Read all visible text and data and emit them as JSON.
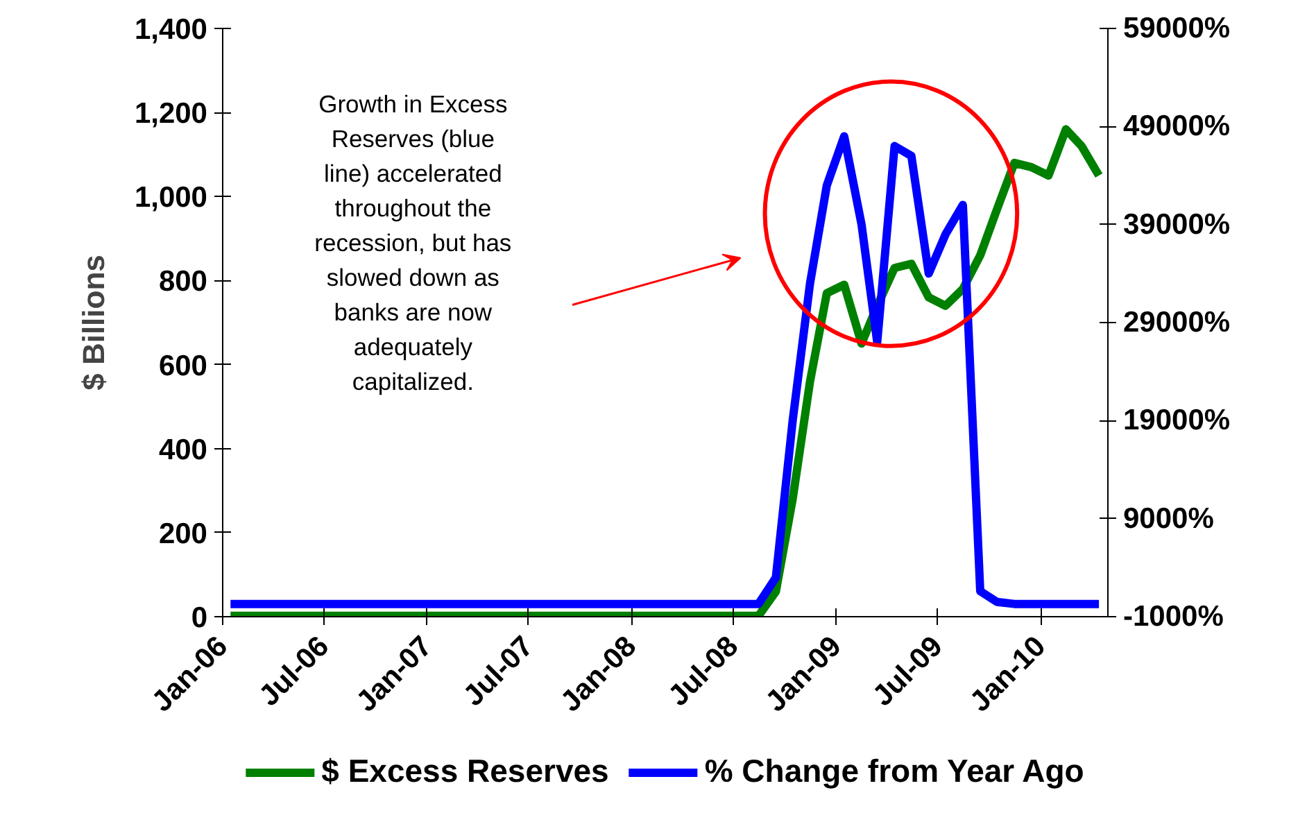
{
  "chart_data": {
    "type": "line",
    "ylabel": "$ Billions",
    "annotations": [
      "Growth in Excess Reserves (blue line) accelerated throughout the recession, but has slowed down as banks are now adequately capitalized."
    ],
    "x": [
      "2006-01-15",
      "2006-02-15",
      "2006-03-15",
      "2006-04-15",
      "2006-05-15",
      "2006-06-15",
      "2006-07-15",
      "2006-08-15",
      "2006-09-15",
      "2006-10-15",
      "2006-11-15",
      "2006-12-15",
      "2007-01-15",
      "2007-02-15",
      "2007-03-15",
      "2007-04-15",
      "2007-05-15",
      "2007-06-15",
      "2007-07-15",
      "2007-08-15",
      "2007-09-15",
      "2007-10-15",
      "2007-11-15",
      "2007-12-15",
      "2008-01-15",
      "2008-02-15",
      "2008-03-15",
      "2008-04-15",
      "2008-05-15",
      "2008-06-15",
      "2008-07-15",
      "2008-08-15",
      "2008-09-15",
      "2008-10-15",
      "2008-11-15",
      "2008-12-15",
      "2009-01-15",
      "2009-02-15",
      "2009-03-15",
      "2009-04-15",
      "2009-05-15",
      "2009-06-15",
      "2009-07-15",
      "2009-08-15",
      "2009-09-15",
      "2009-10-15",
      "2009-11-15",
      "2009-12-15",
      "2010-01-15",
      "2010-02-15",
      "2010-03-15",
      "2010-04-15"
    ],
    "series": [
      {
        "name": "$ Excess Reserves",
        "color": "#008000",
        "values": [
          2,
          2,
          2,
          2,
          2,
          2,
          2,
          2,
          2,
          2,
          2,
          2,
          2,
          2,
          2,
          2,
          2,
          2,
          2,
          2,
          2,
          2,
          2,
          2,
          2,
          2,
          2,
          2,
          2,
          2,
          2,
          2,
          60,
          280,
          560,
          770,
          790,
          650,
          740,
          830,
          840,
          760,
          740,
          780,
          860,
          970,
          1080,
          1070,
          1050,
          1160,
          1120,
          1050
        ]
      },
      {
        "name": "% Change from Year Ago",
        "color": "#0000ff",
        "axis": "y2",
        "values": [
          300,
          300,
          300,
          300,
          300,
          300,
          300,
          300,
          300,
          300,
          300,
          300,
          300,
          300,
          300,
          300,
          300,
          300,
          300,
          300,
          300,
          300,
          300,
          300,
          300,
          300,
          300,
          300,
          300,
          300,
          300,
          300,
          3000,
          19000,
          33000,
          43000,
          48000,
          39000,
          27000,
          47000,
          46000,
          34000,
          38000,
          41000,
          1600,
          500,
          300,
          300,
          300,
          300,
          300,
          300
        ]
      }
    ],
    "xlim": [
      "2006-01-01",
      "2010-05-01"
    ],
    "xticks": [
      {
        "value": "2006-01-01",
        "label": "Jan-06"
      },
      {
        "value": "2006-07-01",
        "label": "Jul-06"
      },
      {
        "value": "2007-01-01",
        "label": "Jan-07"
      },
      {
        "value": "2007-07-01",
        "label": "Jul-07"
      },
      {
        "value": "2008-01-01",
        "label": "Jan-08"
      },
      {
        "value": "2008-07-01",
        "label": "Jul-08"
      },
      {
        "value": "2009-01-01",
        "label": "Jan-09"
      },
      {
        "value": "2009-07-01",
        "label": "Jul-09"
      },
      {
        "value": "2010-01-01",
        "label": "Jan-10"
      }
    ],
    "ylim": [
      0,
      1400
    ],
    "yticks": [
      0,
      200,
      400,
      600,
      800,
      {
        "value": 1000,
        "label": "1,000"
      },
      {
        "value": 1200,
        "label": "1,200"
      },
      {
        "value": 1400,
        "label": "1,400"
      }
    ],
    "y2lim": [
      -1000,
      59000
    ],
    "y2ticks": [
      {
        "value": -1000,
        "label": "-1000%"
      },
      {
        "value": 9000,
        "label": "9000%"
      },
      {
        "value": 19000,
        "label": "19000%"
      },
      {
        "value": 29000,
        "label": "29000%"
      },
      {
        "value": 39000,
        "label": "39000%"
      },
      {
        "value": 49000,
        "label": "49000%"
      },
      {
        "value": 59000,
        "label": "59000%"
      }
    ],
    "grid": false,
    "legend": "bottom",
    "line_style": "solid",
    "marker": "none"
  }
}
